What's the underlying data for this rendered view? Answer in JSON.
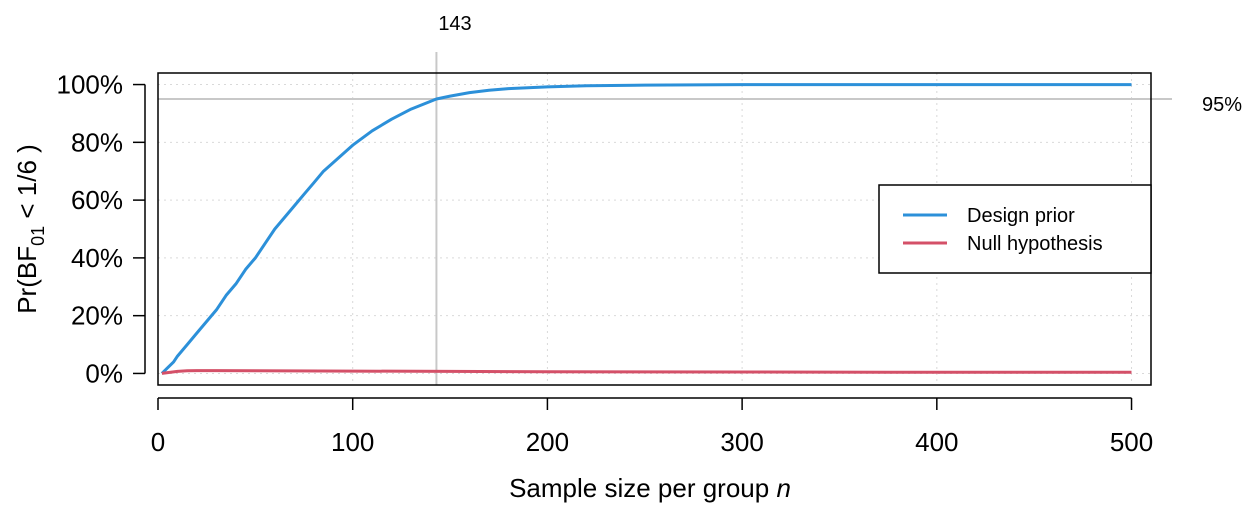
{
  "chart_data": {
    "type": "line",
    "xlabel_main": "Sample size per group ",
    "xlabel_var": "n",
    "ylabel": {
      "prefix": "Pr(BF",
      "subscript": "01",
      "suffix": " < 1/6 )"
    },
    "xlim": [
      0,
      510
    ],
    "ylim": [
      -0.04,
      1.04
    ],
    "x_ticks": [
      0,
      100,
      200,
      300,
      400,
      500
    ],
    "x_tick_labels": [
      "0",
      "100",
      "200",
      "300",
      "400",
      "500"
    ],
    "y_ticks": [
      0,
      0.2,
      0.4,
      0.6,
      0.8,
      1.0
    ],
    "y_tick_labels": [
      "0%",
      "20%",
      "40%",
      "60%",
      "80%",
      "100%"
    ],
    "grid": true,
    "reference_lines": {
      "vertical_x": 143,
      "vertical_label": "143",
      "horizontal_y": 0.95,
      "horizontal_label": "95%"
    },
    "legend_position": "right",
    "colors": {
      "design_prior": "#2C90D9",
      "null_hypothesis": "#D45068",
      "reference": "#C8C8C8",
      "grid": "#D9D9D9"
    },
    "series": [
      {
        "name": "Design prior",
        "color": "#2C90D9",
        "x": [
          2,
          5,
          8,
          10,
          15,
          20,
          25,
          30,
          35,
          40,
          45,
          50,
          55,
          60,
          65,
          70,
          75,
          80,
          85,
          90,
          95,
          100,
          110,
          120,
          130,
          143,
          150,
          160,
          170,
          180,
          200,
          220,
          250,
          300,
          350,
          400,
          450,
          500
        ],
        "y": [
          0.0,
          0.02,
          0.04,
          0.06,
          0.1,
          0.14,
          0.18,
          0.22,
          0.27,
          0.31,
          0.36,
          0.4,
          0.45,
          0.5,
          0.54,
          0.58,
          0.62,
          0.66,
          0.7,
          0.73,
          0.76,
          0.79,
          0.84,
          0.88,
          0.915,
          0.95,
          0.96,
          0.972,
          0.98,
          0.986,
          0.992,
          0.996,
          0.998,
          1.0,
          1.0,
          1.0,
          1.0,
          1.0
        ]
      },
      {
        "name": "Null hypothesis",
        "color": "#D45068",
        "x": [
          2,
          5,
          10,
          15,
          20,
          30,
          50,
          100,
          150,
          200,
          300,
          400,
          500
        ],
        "y": [
          0.0,
          0.003,
          0.007,
          0.009,
          0.01,
          0.01,
          0.009,
          0.008,
          0.007,
          0.006,
          0.005,
          0.004,
          0.004
        ]
      }
    ]
  }
}
